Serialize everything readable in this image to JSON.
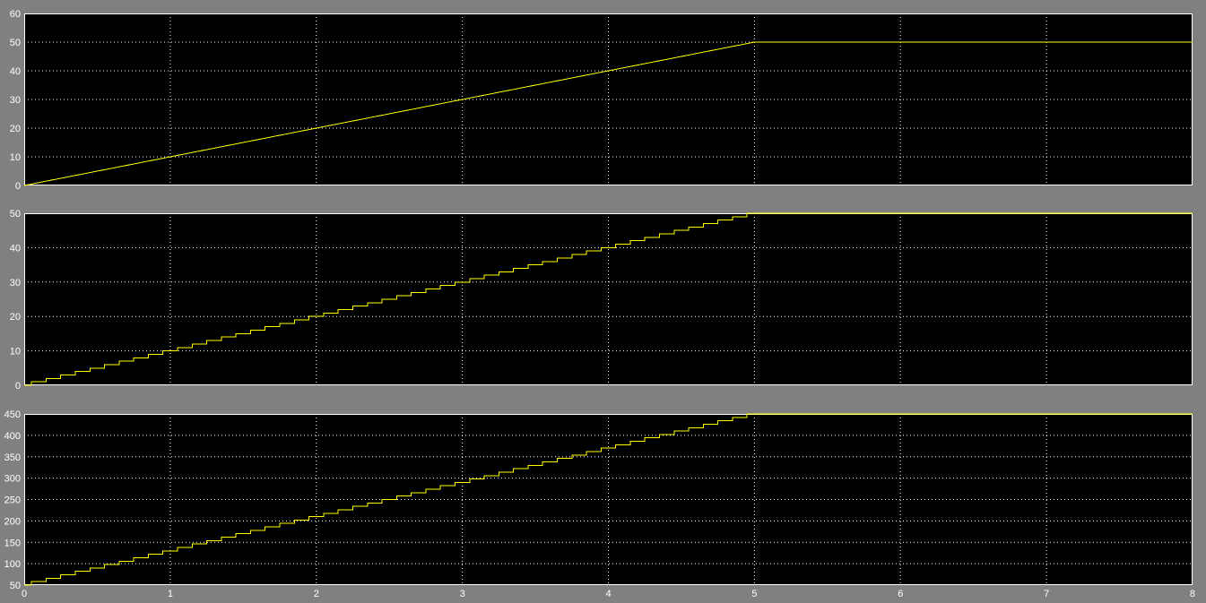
{
  "colors": {
    "background": "#808080",
    "plot_background": "#000000",
    "grid": "#ffffff",
    "trace": "#ffff00",
    "tick_text": "#ffffff"
  },
  "chart_data": [
    {
      "type": "line",
      "title": "",
      "xlabel": "",
      "ylabel": "",
      "xlim": [
        0,
        8
      ],
      "ylim": [
        0,
        60
      ],
      "grid": true,
      "step": false,
      "xticks": [
        "0",
        "1",
        "2",
        "3",
        "4",
        "5",
        "6",
        "7",
        "8"
      ],
      "yticks": [
        "0",
        "10",
        "20",
        "30",
        "40",
        "50",
        "60"
      ],
      "x": [
        0,
        5,
        8
      ],
      "y": [
        0,
        50,
        50
      ]
    },
    {
      "type": "line",
      "title": "",
      "xlabel": "",
      "ylabel": "",
      "xlim": [
        0,
        8
      ],
      "ylim": [
        0,
        50
      ],
      "grid": true,
      "step": true,
      "xticks": [
        "0",
        "1",
        "2",
        "3",
        "4",
        "5",
        "6",
        "7",
        "8"
      ],
      "yticks": [
        "0",
        "10",
        "20",
        "30",
        "40",
        "50"
      ],
      "x": [
        0,
        0.05,
        0.15,
        0.25,
        0.35,
        0.45,
        0.55,
        0.65,
        0.75,
        0.85,
        0.95,
        1.05,
        1.15,
        1.25,
        1.35,
        1.45,
        1.55,
        1.65,
        1.75,
        1.85,
        1.95,
        2.05,
        2.15,
        2.25,
        2.35,
        2.45,
        2.55,
        2.65,
        2.75,
        2.85,
        2.95,
        3.05,
        3.15,
        3.25,
        3.35,
        3.45,
        3.55,
        3.65,
        3.75,
        3.85,
        3.95,
        4.05,
        4.15,
        4.25,
        4.35,
        4.45,
        4.55,
        4.65,
        4.75,
        4.85,
        4.95,
        8
      ],
      "y": [
        0,
        1,
        2,
        3,
        4,
        5,
        6,
        7,
        8,
        9,
        10,
        11,
        12,
        13,
        14,
        15,
        16,
        17,
        18,
        19,
        20,
        21,
        22,
        23,
        24,
        25,
        26,
        27,
        28,
        29,
        30,
        31,
        32,
        33,
        34,
        35,
        36,
        37,
        38,
        39,
        40,
        41,
        42,
        43,
        44,
        45,
        46,
        47,
        48,
        49,
        50,
        50
      ]
    },
    {
      "type": "line",
      "title": "",
      "xlabel": "",
      "ylabel": "",
      "xlim": [
        0,
        8
      ],
      "ylim": [
        50,
        450
      ],
      "grid": true,
      "step": true,
      "xticks": [
        "0",
        "1",
        "2",
        "3",
        "4",
        "5",
        "6",
        "7",
        "8"
      ],
      "yticks": [
        "50",
        "100",
        "150",
        "200",
        "250",
        "300",
        "350",
        "400",
        "450"
      ],
      "x": [
        0,
        0.05,
        0.15,
        0.25,
        0.35,
        0.45,
        0.55,
        0.65,
        0.75,
        0.85,
        0.95,
        1.05,
        1.15,
        1.25,
        1.35,
        1.45,
        1.55,
        1.65,
        1.75,
        1.85,
        1.95,
        2.05,
        2.15,
        2.25,
        2.35,
        2.45,
        2.55,
        2.65,
        2.75,
        2.85,
        2.95,
        3.05,
        3.15,
        3.25,
        3.35,
        3.45,
        3.55,
        3.65,
        3.75,
        3.85,
        3.95,
        4.05,
        4.15,
        4.25,
        4.35,
        4.45,
        4.55,
        4.65,
        4.75,
        4.85,
        4.95,
        8
      ],
      "y": [
        50,
        58,
        66,
        74,
        82,
        90,
        98,
        106,
        114,
        122,
        130,
        138,
        146,
        154,
        162,
        170,
        178,
        186,
        194,
        202,
        210,
        218,
        226,
        234,
        242,
        250,
        258,
        266,
        274,
        282,
        290,
        298,
        306,
        314,
        322,
        330,
        338,
        346,
        354,
        362,
        370,
        378,
        386,
        394,
        402,
        410,
        418,
        426,
        434,
        442,
        450,
        450
      ]
    }
  ]
}
